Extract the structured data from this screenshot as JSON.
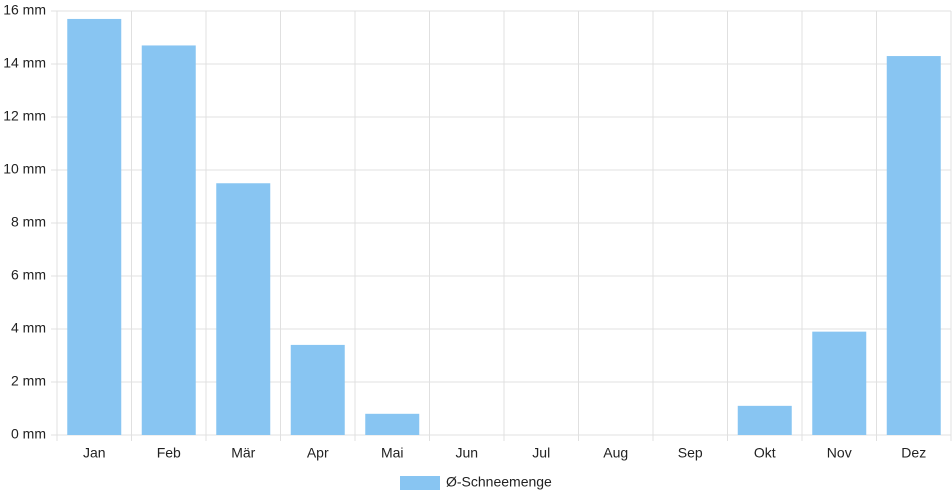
{
  "chart_data": {
    "type": "bar",
    "categories": [
      "Jan",
      "Feb",
      "Mär",
      "Apr",
      "Mai",
      "Jun",
      "Jul",
      "Aug",
      "Sep",
      "Okt",
      "Nov",
      "Dez"
    ],
    "series": [
      {
        "name": "Ø-Schneemenge",
        "color": "#88c5f2",
        "values": [
          15.7,
          14.7,
          9.5,
          3.4,
          0.8,
          0,
          0,
          0,
          0,
          1.1,
          3.9,
          14.3
        ]
      }
    ],
    "ylim": [
      0,
      16
    ],
    "yticks": [
      {
        "value": 0,
        "label": "0 mm"
      },
      {
        "value": 2,
        "label": "2 mm"
      },
      {
        "value": 4,
        "label": "4 mm"
      },
      {
        "value": 6,
        "label": "6 mm"
      },
      {
        "value": 8,
        "label": "8 mm"
      },
      {
        "value": 10,
        "label": "10 mm"
      },
      {
        "value": 12,
        "label": "12 mm"
      },
      {
        "value": 14,
        "label": "14 mm"
      },
      {
        "value": 16,
        "label": "16 mm"
      }
    ],
    "grid": true,
    "legend": "bottom"
  }
}
